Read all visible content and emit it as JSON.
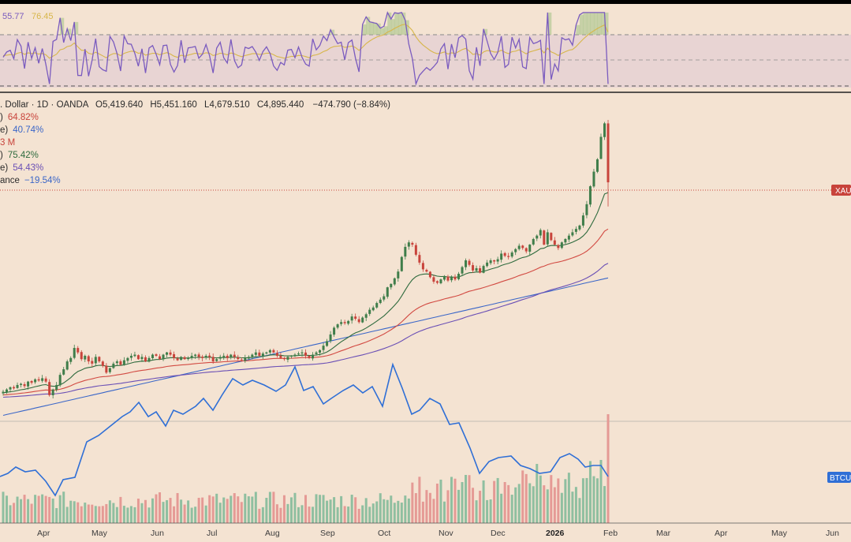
{
  "chart_data": {
    "type": "candlestick",
    "colors": {
      "background": "#f4e3d2",
      "up": "#3f7d4a",
      "down": "#c8433b",
      "sma_fast": "#2f6b3e",
      "sma_mid": "#d24a42",
      "sma_slow": "#6a4fb5",
      "sma_200": "#3a66c8",
      "btc_overlay": "#2f6fd6",
      "rsi": "#7a5bbf",
      "rsi_ma": "#d7b64a",
      "vol_up": "#8fbfa0",
      "vol_down": "#e59a95"
    },
    "rsi_panel": {
      "value_1": "55.77",
      "value_2": "76.45"
    },
    "legend": {
      "ohlc": {
        "symbol": ". Dollar · 1D · OANDA",
        "o_label": "O",
        "o": "5,419.640",
        "h_label": "H",
        "h": "5,451.160",
        "l_label": "L",
        "l": "4,679.510",
        "c_label": "C",
        "c": "4,895.440",
        "change": "−474.790 (−8.84%)"
      },
      "lines": [
        {
          "prefix": ")",
          "value": "64.82%",
          "color": "#c8433b"
        },
        {
          "prefix": "e)",
          "value": "40.74%",
          "color": "#3a66c8"
        },
        {
          "prefix": "",
          "value": "3 M",
          "color": "#c8433b"
        },
        {
          "prefix": ")",
          "value": "75.42%",
          "color": "#2f6b3e"
        },
        {
          "prefix": "e)",
          "value": "54.43%",
          "color": "#6a4fb5"
        },
        {
          "prefix": "ance",
          "value": "−19.54%",
          "color": "#3a66c8"
        }
      ]
    },
    "price_tag": "XAU",
    "overlay_tag": "BTCU",
    "x_tick_labels": [
      "Apr",
      "May",
      "Jun",
      "Jul",
      "Aug",
      "Sep",
      "Oct",
      "Nov",
      "Dec",
      "2026",
      "Feb",
      "Mar",
      "Apr",
      "May",
      "Jun"
    ],
    "candles_close": [
      3030,
      3050,
      3070,
      3060,
      3090,
      3100,
      3080,
      3120,
      3110,
      3140,
      3130,
      3150,
      3120,
      3000,
      3050,
      3090,
      3180,
      3230,
      3300,
      3330,
      3420,
      3380,
      3320,
      3350,
      3300,
      3280,
      3340,
      3300,
      3260,
      3200,
      3240,
      3280,
      3300,
      3270,
      3310,
      3330,
      3350,
      3360,
      3320,
      3340,
      3300,
      3330,
      3360,
      3350,
      3320,
      3360,
      3380,
      3360,
      3330,
      3310,
      3340,
      3320,
      3330,
      3350,
      3360,
      3340,
      3330,
      3350,
      3340,
      3300,
      3320,
      3340,
      3350,
      3330,
      3360,
      3340,
      3320,
      3310,
      3330,
      3340,
      3360,
      3380,
      3350,
      3370,
      3380,
      3400,
      3380,
      3350,
      3330,
      3320,
      3340,
      3350,
      3360,
      3370,
      3380,
      3350,
      3330,
      3360,
      3380,
      3400,
      3440,
      3480,
      3540,
      3600,
      3630,
      3650,
      3640,
      3660,
      3700,
      3680,
      3650,
      3690,
      3720,
      3760,
      3780,
      3820,
      3850,
      3880,
      3960,
      3990,
      4040,
      4100,
      4230,
      4320,
      4360,
      4340,
      4250,
      4180,
      4120,
      4100,
      4050,
      4010,
      4000,
      4030,
      4060,
      4020,
      4050,
      4030,
      4080,
      4140,
      4200,
      4160,
      4110,
      4130,
      4090,
      4150,
      4180,
      4200,
      4190,
      4210,
      4260,
      4240,
      4230,
      4270,
      4300,
      4330,
      4310,
      4280,
      4340,
      4390,
      4420,
      4470,
      4340,
      4450,
      4380,
      4340,
      4310,
      4360,
      4390,
      4420,
      4450,
      4480,
      4510,
      4600,
      4700,
      4860,
      4990,
      5100,
      5300,
      5420,
      4895
    ],
    "sma_fast_start": 3020,
    "btc_overlay_pct": [
      -19.54
    ],
    "volume_bars": "relative volume per day"
  }
}
